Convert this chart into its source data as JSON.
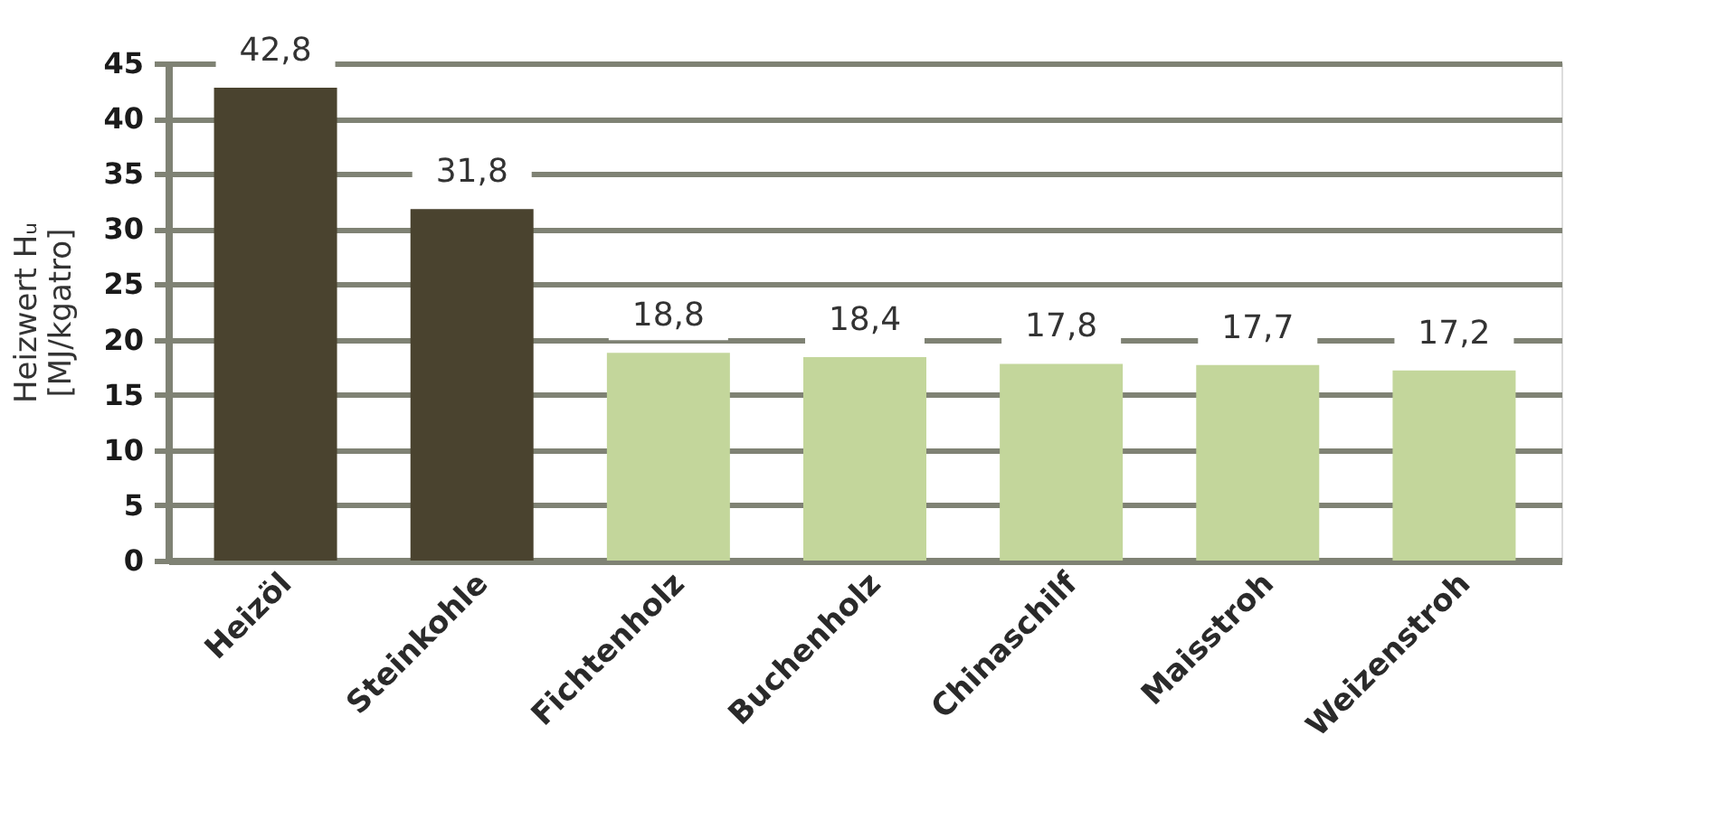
{
  "chart_data": {
    "type": "bar",
    "ylabel": "Heizwert Hᵤ\n[MJ/kgatro]",
    "categories": [
      "Heizöl",
      "Steinkohle",
      "Fichtenholz",
      "Buchenholz",
      "Chinaschilf",
      "Maisstroh",
      "Weizenstroh"
    ],
    "values": [
      42.8,
      31.8,
      18.8,
      18.4,
      17.8,
      17.7,
      17.2
    ],
    "colors": [
      "#4a432f",
      "#4a432f",
      "#c3d69b",
      "#c3d69b",
      "#c3d69b",
      "#c3d69b",
      "#c3d69b"
    ],
    "value_labels": [
      "42,8",
      "31,8",
      "18,8",
      "18,4",
      "17,8",
      "17,7",
      "17,2"
    ],
    "ylim": [
      0,
      45
    ],
    "yticks": [
      0,
      5,
      10,
      15,
      20,
      25,
      30,
      35,
      40,
      45
    ],
    "grid": "y"
  }
}
